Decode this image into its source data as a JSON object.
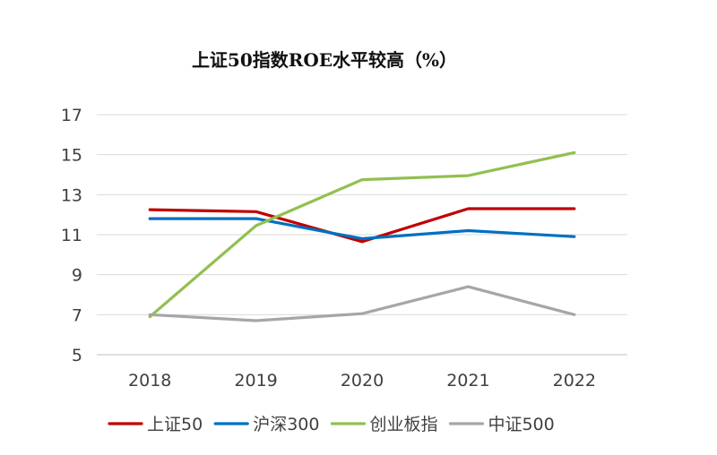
{
  "chart_data": {
    "type": "line",
    "title": "上证50指数ROE水平较高（%）",
    "xlabel": "",
    "ylabel": "",
    "categories": [
      "2018",
      "2019",
      "2020",
      "2021",
      "2022"
    ],
    "ylim": [
      5,
      17
    ],
    "yticks": [
      5,
      7,
      9,
      11,
      13,
      15,
      17
    ],
    "grid": true,
    "legend_position": "bottom",
    "series": [
      {
        "name": "上证50",
        "color": "#c00000",
        "values": [
          12.25,
          12.15,
          10.65,
          12.3,
          12.3
        ]
      },
      {
        "name": "沪深300",
        "color": "#0070c0",
        "values": [
          11.8,
          11.8,
          10.8,
          11.2,
          10.9
        ]
      },
      {
        "name": "创业板指",
        "color": "#92c050",
        "values": [
          6.9,
          11.45,
          13.75,
          13.95,
          15.1
        ]
      },
      {
        "name": "中证500",
        "color": "#a6a6a6",
        "values": [
          7.0,
          6.7,
          7.05,
          8.4,
          7.0
        ]
      }
    ]
  }
}
